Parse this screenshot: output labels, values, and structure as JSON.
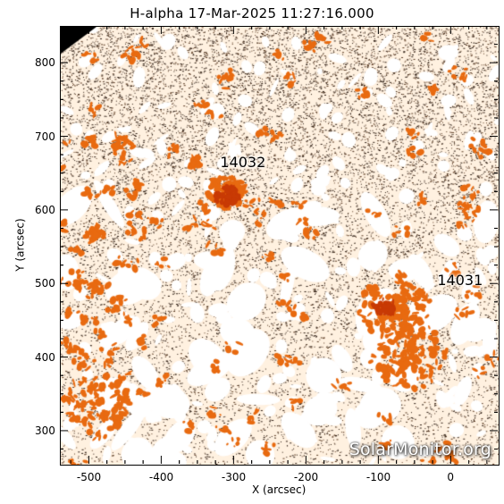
{
  "title": "H-alpha 17-Mar-2025 11:27:16.000",
  "x_axis": {
    "label": "X (arcsec)",
    "ticks": [
      "-500",
      "-400",
      "-300",
      "-200",
      "-100",
      "0"
    ],
    "range": [
      -540,
      65
    ]
  },
  "y_axis": {
    "label": "Y (arcsec)",
    "ticks": [
      "300",
      "400",
      "500",
      "600",
      "700",
      "800"
    ],
    "range": [
      255,
      850
    ]
  },
  "regions": [
    {
      "label": "14032",
      "x": -300,
      "y": 665
    },
    {
      "label": "14031",
      "x": 0,
      "y": 505
    }
  ],
  "watermark": "SolarMonitor.org",
  "colors": {
    "background": "#ffffff",
    "plage": "#e86a10",
    "plage_bright": "#c83a05",
    "speckle": "#2a1a10",
    "disk": "#fff1e0"
  }
}
